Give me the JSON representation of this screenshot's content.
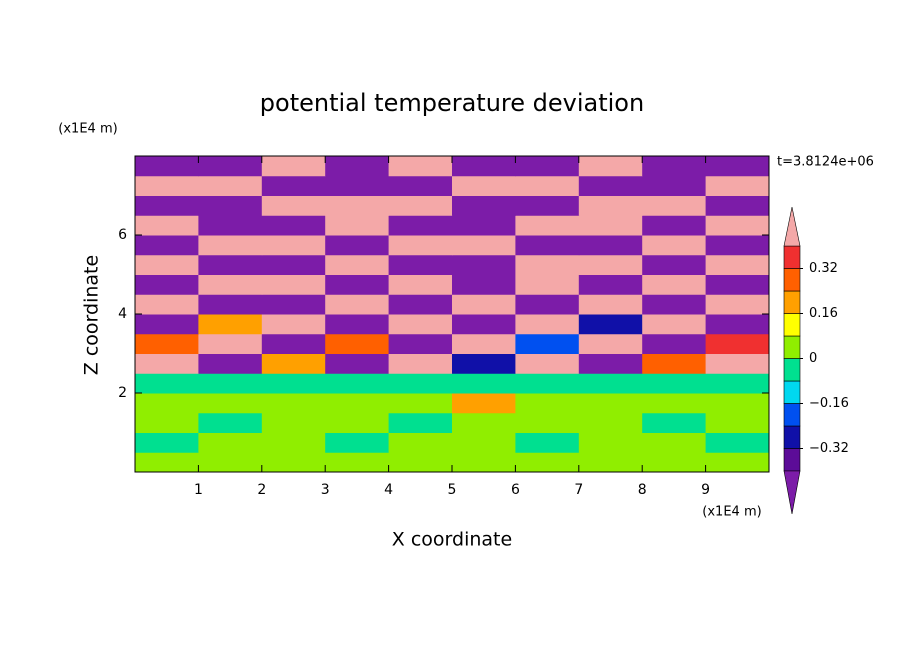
{
  "chart_data": {
    "type": "contour",
    "title": "potential temperature deviation",
    "x_label": "X coordinate",
    "y_label": "Z coordinate",
    "x_unit": "(x1E4 m)",
    "y_unit": "(x1E4 m)",
    "time_label": "t=3.8124e+06",
    "xlim": [
      0,
      10
    ],
    "ylim": [
      0,
      8
    ],
    "xticks": [
      1,
      2,
      3,
      4,
      5,
      6,
      7,
      8,
      9
    ],
    "yticks": [
      2,
      4,
      6
    ],
    "x": [
      0.5,
      1.5,
      2.5,
      3.5,
      4.5,
      5.5,
      6.5,
      7.5,
      8.5,
      9.5
    ],
    "z": [
      0.25,
      0.75,
      1.25,
      1.75,
      2.25,
      2.75,
      3.25,
      3.75,
      4.25,
      4.75,
      5.25,
      5.75,
      6.25,
      6.75,
      7.25,
      7.75
    ],
    "values": [
      [
        0.05,
        0.05,
        0.05,
        0.05,
        0.05,
        0.05,
        0.05,
        0.05,
        0.05,
        0.05
      ],
      [
        -0.05,
        0.05,
        0.05,
        -0.05,
        0.05,
        0.05,
        -0.05,
        0.05,
        0.05,
        -0.05
      ],
      [
        0.05,
        -0.05,
        0.05,
        0.05,
        -0.05,
        0.05,
        0.05,
        0.05,
        -0.05,
        0.05
      ],
      [
        0.05,
        0.05,
        0.05,
        0.05,
        0.05,
        0.2,
        0.05,
        0.05,
        0.05,
        0.05
      ],
      [
        -0.05,
        -0.05,
        -0.05,
        -0.05,
        -0.05,
        -0.05,
        -0.05,
        -0.05,
        -0.05,
        -0.05
      ],
      [
        0.5,
        -0.5,
        0.2,
        -0.5,
        0.5,
        -0.3,
        0.5,
        -0.5,
        0.3,
        0.5
      ],
      [
        0.3,
        0.5,
        -0.5,
        0.28,
        -0.5,
        0.5,
        -0.2,
        0.5,
        -0.5,
        0.36
      ],
      [
        -0.5,
        0.2,
        0.5,
        -0.5,
        0.5,
        -0.5,
        0.5,
        -0.3,
        0.5,
        -0.5
      ],
      [
        0.5,
        -0.5,
        -0.5,
        0.5,
        -0.5,
        0.5,
        -0.5,
        0.5,
        -0.5,
        0.5
      ],
      [
        -0.5,
        0.5,
        0.5,
        -0.5,
        0.5,
        -0.5,
        0.5,
        -0.5,
        0.5,
        -0.5
      ],
      [
        0.5,
        -0.5,
        -0.5,
        0.5,
        -0.5,
        -0.5,
        0.5,
        0.5,
        -0.5,
        0.5
      ],
      [
        -0.5,
        0.5,
        0.5,
        -0.5,
        0.5,
        0.5,
        -0.5,
        -0.5,
        0.5,
        -0.5
      ],
      [
        0.5,
        -0.5,
        -0.5,
        0.5,
        -0.5,
        -0.5,
        0.5,
        0.5,
        -0.5,
        0.5
      ],
      [
        -0.5,
        -0.5,
        0.5,
        0.5,
        0.5,
        -0.5,
        -0.5,
        0.5,
        0.5,
        -0.5
      ],
      [
        0.5,
        0.5,
        -0.5,
        -0.5,
        -0.5,
        0.5,
        0.5,
        -0.5,
        -0.5,
        0.5
      ],
      [
        -0.5,
        -0.5,
        0.5,
        -0.5,
        0.5,
        -0.5,
        -0.5,
        0.5,
        -0.5,
        -0.5
      ]
    ],
    "levels": [
      -0.4,
      -0.32,
      -0.24,
      -0.16,
      -0.08,
      0,
      0.08,
      0.16,
      0.24,
      0.32,
      0.4
    ],
    "colors": [
      "#7c1ca8",
      "#5c0c98",
      "#1010a8",
      "#0050f0",
      "#00d8f0",
      "#00e090",
      "#90ee00",
      "#ffff00",
      "#ffa000",
      "#ff6000",
      "#f03030",
      "#f4a8a8"
    ],
    "colorbar_ticks": [
      0.32,
      0.16,
      0,
      {
        "value": -0.16,
        "label": "−0.16"
      },
      {
        "value": -0.32,
        "label": "−0.32"
      }
    ]
  }
}
